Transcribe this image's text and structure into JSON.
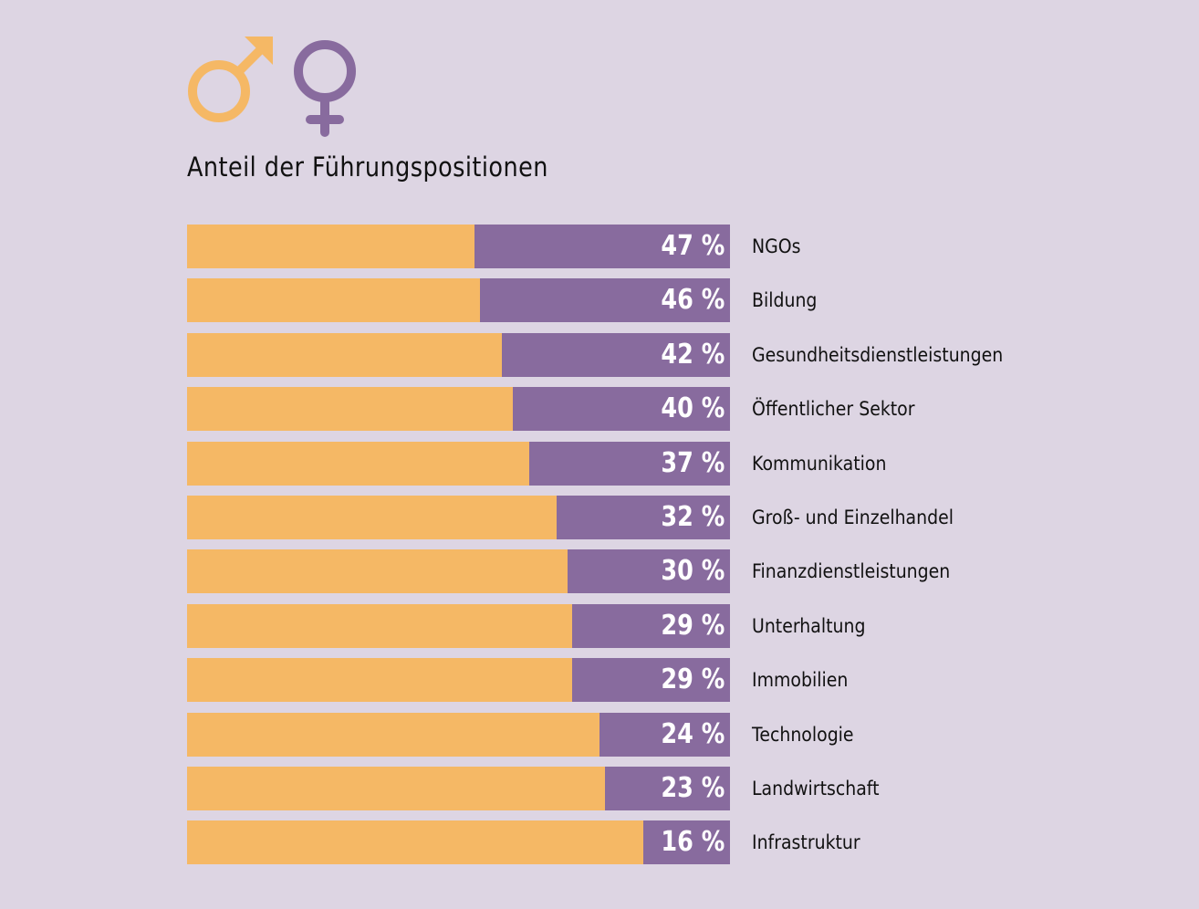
{
  "colors": {
    "background": "#ddd5e3",
    "male": "#f5b865",
    "female": "#886b9e"
  },
  "icons": [
    "male-symbol-icon",
    "female-symbol-icon"
  ],
  "chart_data": {
    "type": "bar",
    "orientation": "horizontal-stacked-100",
    "title": "Anteil der Führungspositionen",
    "categories": [
      "NGOs",
      "Bildung",
      "Gesundheitsdienstleistungen",
      "Öffentlicher Sektor",
      "Kommunikation",
      "Groß- und Einzelhandel",
      "Finanzdienstleistungen",
      "Unterhaltung",
      "Immobilien",
      "Technologie",
      "Landwirtschaft",
      "Infrastruktur"
    ],
    "values": [
      47,
      46,
      42,
      40,
      37,
      32,
      30,
      29,
      29,
      24,
      23,
      16
    ],
    "labels": [
      "47 %",
      "46 %",
      "42 %",
      "40 %",
      "37 %",
      "32 %",
      "30 %",
      "29 %",
      "29 %",
      "24 %",
      "23 %",
      "16 %"
    ],
    "xlim": [
      0,
      100
    ],
    "grid": false
  }
}
